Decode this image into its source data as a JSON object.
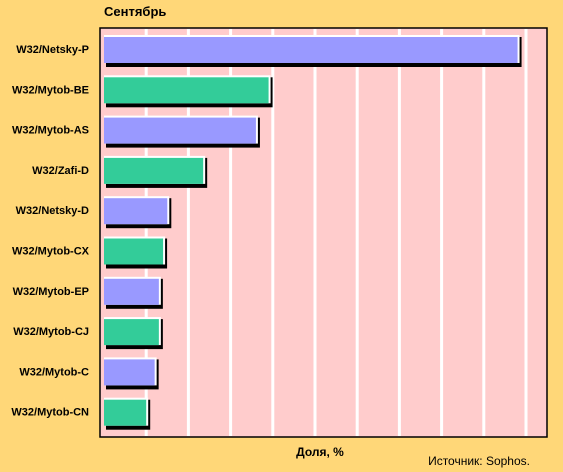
{
  "chart_data": {
    "type": "bar",
    "orientation": "horizontal",
    "title": "Сентябрь",
    "xlabel": "Доля, %",
    "source": "Источник: Sophos.",
    "categories": [
      "W32/Netsky-P",
      "W32/Mytob-BE",
      "W32/Mytob-AS",
      "W32/Zafi-D",
      "W32/Netsky-D",
      "W32/Mytob-CX",
      "W32/Mytob-EP",
      "W32/Mytob-CJ",
      "W32/Mytob-C",
      "W32/Mytob-CN"
    ],
    "values": [
      19.6,
      7.8,
      7.2,
      4.7,
      3.0,
      2.8,
      2.6,
      2.6,
      2.4,
      2.0
    ],
    "xlim": [
      0,
      20
    ],
    "grid": true,
    "colors": {
      "background": "#FFD778",
      "plot": "#FFCCCC",
      "bar_a": "#9999FF",
      "bar_b": "#33CC99",
      "grid": "#FFFFFF"
    }
  }
}
